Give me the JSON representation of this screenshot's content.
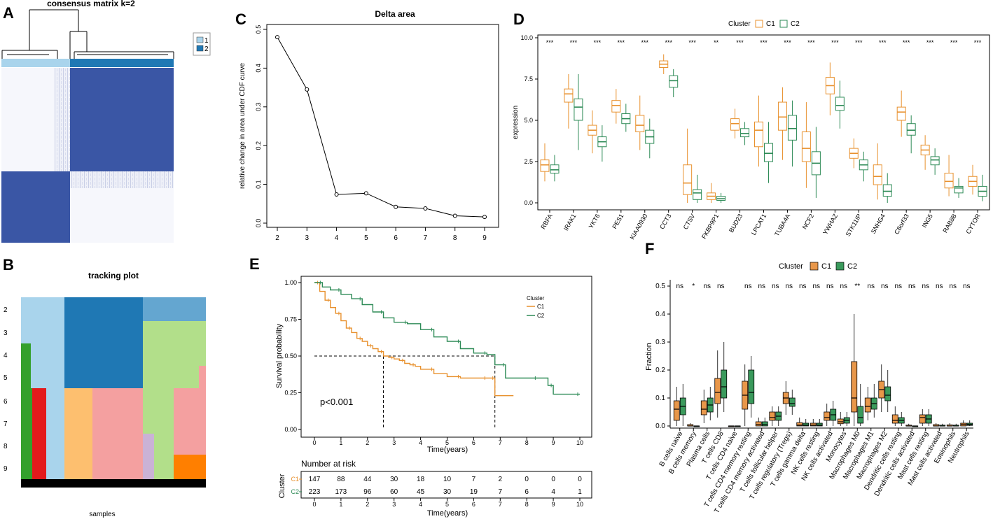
{
  "colors": {
    "c1": "#E8912E",
    "c2": "#2E8B57",
    "c1_fill": "#E8974A",
    "c2_fill": "#3A9A5C",
    "heat_dark": "#3A56A5",
    "heat_light": "#F3F4FB",
    "bar1": "#A9D4EC",
    "bar2": "#1F78B4"
  },
  "panels": {
    "A": {
      "letter": "A",
      "title": "consensus matrix k=2",
      "legend": [
        "1",
        "2"
      ]
    },
    "B": {
      "letter": "B",
      "title": "tracking plot",
      "xlabel": "samples",
      "rows": [
        "2",
        "3",
        "4",
        "5",
        "6",
        "7",
        "8",
        "9"
      ]
    },
    "C": {
      "letter": "C",
      "chart_data": {
        "type": "line",
        "title": "Delta area",
        "xlabel": "",
        "ylabel": "relative change in area under CDF curve",
        "x": [
          2,
          3,
          4,
          5,
          6,
          7,
          8,
          9
        ],
        "y": [
          0.48,
          0.345,
          0.074,
          0.077,
          0.042,
          0.038,
          0.019,
          0.016
        ],
        "xlim": [
          2,
          9
        ],
        "ylim": [
          0,
          0.5
        ],
        "yticks": [
          "0.0",
          "0.1",
          "0.2",
          "0.3",
          "0.4",
          "0.5"
        ],
        "xticks": [
          "2",
          "3",
          "4",
          "5",
          "6",
          "7",
          "8",
          "9"
        ]
      }
    },
    "D": {
      "letter": "D",
      "chart_data": {
        "type": "box",
        "ylabel": "expression",
        "legend_title": "Cluster",
        "legend_labels": [
          "C1",
          "C2"
        ],
        "yticks": [
          "0.0",
          "2.5",
          "5.0",
          "7.5",
          "10.0"
        ],
        "ylim": [
          0,
          10
        ],
        "categories": [
          "RBFA",
          "IRAK1",
          "YKT6",
          "PES1",
          "KIAA0930",
          "CCT3",
          "CTSV",
          "FKBP9P1",
          "BUD23",
          "LPCAT1",
          "TUBA4A",
          "NCF2",
          "YWHAZ",
          "STK11IP",
          "SNHG4",
          "C8orf33",
          "ING5",
          "RAB8B",
          "CYTOR"
        ],
        "signif": [
          "***",
          "***",
          "***",
          "***",
          "***",
          "***",
          "***",
          "**",
          "***",
          "***",
          "***",
          "***",
          "***",
          "***",
          "***",
          "***",
          "***",
          "***",
          "***"
        ],
        "series": [
          {
            "name": "C1",
            "stats": [
              [
                1.3,
                1.9,
                2.3,
                2.6,
                3.6
              ],
              [
                4.5,
                6.1,
                6.6,
                6.9,
                7.8
              ],
              [
                3.0,
                4.1,
                4.4,
                4.7,
                5.6
              ],
              [
                4.8,
                5.5,
                5.9,
                6.2,
                6.9
              ],
              [
                3.2,
                4.3,
                4.7,
                5.3,
                6.5
              ],
              [
                7.8,
                8.2,
                8.4,
                8.6,
                9.0
              ],
              [
                0,
                0.5,
                1.2,
                2.3,
                4.5
              ],
              [
                0,
                0.2,
                0.4,
                0.6,
                1.2
              ],
              [
                3.9,
                4.4,
                4.8,
                5.1,
                5.7
              ],
              [
                2.2,
                3.4,
                4.4,
                4.9,
                6.5
              ],
              [
                2.6,
                4.4,
                5.2,
                6.1,
                7.0
              ],
              [
                0.9,
                2.5,
                3.3,
                4.3,
                6.1
              ],
              [
                5.3,
                6.6,
                7.1,
                7.6,
                8.5
              ],
              [
                2.1,
                2.7,
                3.0,
                3.3,
                3.9
              ],
              [
                0.2,
                1.1,
                1.6,
                2.3,
                3.6
              ],
              [
                4.0,
                5.0,
                5.5,
                5.8,
                6.8
              ],
              [
                2.0,
                2.9,
                3.2,
                3.5,
                4.1
              ],
              [
                0.4,
                0.9,
                1.3,
                1.8,
                2.9
              ],
              [
                0.5,
                1.0,
                1.3,
                1.6,
                2.3
              ]
            ]
          },
          {
            "name": "C2",
            "stats": [
              [
                1.3,
                1.8,
                2.0,
                2.3,
                2.9
              ],
              [
                3.2,
                5.0,
                5.8,
                6.3,
                7.8
              ],
              [
                2.5,
                3.4,
                3.7,
                4.0,
                4.7
              ],
              [
                4.3,
                4.8,
                5.1,
                5.4,
                6.0
              ],
              [
                2.7,
                3.6,
                4.0,
                4.4,
                5.1
              ],
              [
                6.4,
                7.0,
                7.4,
                7.7,
                8.1
              ],
              [
                0,
                0.2,
                0.6,
                0.8,
                1.7
              ],
              [
                0,
                0.15,
                0.25,
                0.4,
                0.6
              ],
              [
                3.5,
                4.0,
                4.2,
                4.5,
                4.9
              ],
              [
                1.2,
                2.5,
                3.0,
                3.6,
                4.9
              ],
              [
                2.2,
                3.8,
                4.5,
                5.3,
                6.2
              ],
              [
                0.3,
                1.7,
                2.4,
                3.1,
                4.6
              ],
              [
                4.5,
                5.6,
                5.9,
                6.4,
                7.4
              ],
              [
                1.3,
                2.0,
                2.3,
                2.6,
                3.1
              ],
              [
                0,
                0.4,
                0.7,
                1.1,
                1.8
              ],
              [
                3.0,
                4.1,
                4.4,
                4.8,
                5.3
              ],
              [
                1.7,
                2.3,
                2.6,
                2.8,
                3.3
              ],
              [
                0.3,
                0.6,
                0.9,
                1.0,
                1.5
              ],
              [
                0.1,
                0.4,
                0.7,
                1.0,
                1.7
              ]
            ]
          }
        ]
      }
    },
    "E": {
      "letter": "E",
      "chart_data": {
        "type": "line",
        "xlabel": "Time(years)",
        "ylabel": "Survival probability",
        "pvalue": "p<0.001",
        "legend_title": "Cluster",
        "xticks": [
          "0",
          "1",
          "2",
          "3",
          "4",
          "5",
          "6",
          "7",
          "8",
          "9",
          "10"
        ],
        "yticks": [
          "0.00",
          "0.25",
          "0.50",
          "0.75",
          "1.00"
        ],
        "xlim": [
          0,
          10
        ],
        "ylim": [
          0,
          1
        ],
        "median_line_y": 0.5,
        "median_times": [
          2.6,
          6.8
        ],
        "series": [
          {
            "name": "C1",
            "x": [
              0,
              0.2,
              0.4,
              0.6,
              0.8,
              1.0,
              1.2,
              1.4,
              1.6,
              1.8,
              2.0,
              2.2,
              2.4,
              2.6,
              2.8,
              3.0,
              3.2,
              3.4,
              3.6,
              3.8,
              4.0,
              4.5,
              5.0,
              5.5,
              6.0,
              6.5,
              6.7,
              6.8,
              7.5
            ],
            "y": [
              1.0,
              0.94,
              0.88,
              0.83,
              0.79,
              0.74,
              0.69,
              0.66,
              0.62,
              0.6,
              0.57,
              0.55,
              0.53,
              0.5,
              0.49,
              0.48,
              0.47,
              0.45,
              0.44,
              0.43,
              0.41,
              0.38,
              0.36,
              0.35,
              0.35,
              0.35,
              0.35,
              0.23,
              0.23
            ]
          },
          {
            "name": "C2",
            "x": [
              0,
              0.3,
              0.6,
              1.0,
              1.4,
              1.8,
              2.2,
              2.6,
              3.0,
              3.5,
              4.0,
              4.5,
              5.0,
              5.5,
              6.0,
              6.5,
              6.8,
              7.2,
              7.8,
              8.4,
              8.8,
              9.0,
              9.5,
              10
            ],
            "y": [
              1.0,
              0.97,
              0.95,
              0.92,
              0.89,
              0.85,
              0.8,
              0.76,
              0.73,
              0.72,
              0.68,
              0.63,
              0.6,
              0.55,
              0.52,
              0.51,
              0.44,
              0.35,
              0.35,
              0.35,
              0.3,
              0.24,
              0.24,
              0.24
            ]
          }
        ]
      },
      "risk_table": {
        "title": "Number at risk",
        "ylabel": "Cluster",
        "rows": [
          {
            "name": "C1",
            "values": [
              "147",
              "88",
              "44",
              "30",
              "18",
              "10",
              "7",
              "2",
              "0",
              "0",
              "0"
            ]
          },
          {
            "name": "C2",
            "values": [
              "223",
              "173",
              "96",
              "60",
              "45",
              "30",
              "19",
              "7",
              "6",
              "4",
              "1"
            ]
          }
        ],
        "xlabel": "Time(years)"
      }
    },
    "F": {
      "letter": "F",
      "chart_data": {
        "type": "box",
        "ylabel": "Fraction",
        "legend_title": "Cluster",
        "legend_labels": [
          "C1",
          "C2"
        ],
        "yticks": [
          "0.0",
          "0.1",
          "0.2",
          "0.3",
          "0.4",
          "0.5"
        ],
        "ylim": [
          0,
          0.5
        ],
        "categories": [
          "B cells naive",
          "B cells memory",
          "Plasma cells",
          "T cells CD8",
          "T cells CD4 naive",
          "T cells CD4 memory resting",
          "T cells CD4 memory activated",
          "T cells follicular helper",
          "T cells regulatory (Tregs)",
          "T cells gamma delta",
          "NK cells resting",
          "NK cells activated",
          "Monocytes",
          "Macrophages M0",
          "Macrophages M1",
          "Macrophages M2",
          "Dendritic cells resting",
          "Dendritic cells activated",
          "Mast cells resting",
          "Mast cells activated",
          "Eosinophils",
          "Neutrophils"
        ],
        "signif": [
          "ns",
          "*",
          "ns",
          "ns",
          "",
          "ns",
          "ns",
          "ns",
          "ns",
          "ns",
          "ns",
          "ns",
          "ns",
          "**",
          "ns",
          "ns",
          "ns",
          "ns",
          "ns",
          "ns",
          "ns",
          "ns"
        ],
        "series": [
          {
            "name": "C1",
            "stats": [
              [
                0,
                0.02,
                0.06,
                0.09,
                0.14
              ],
              [
                0,
                0,
                0,
                0.005,
                0.01
              ],
              [
                0.01,
                0.04,
                0.06,
                0.09,
                0.13
              ],
              [
                0.03,
                0.08,
                0.12,
                0.17,
                0.27
              ],
              [
                0,
                0,
                0,
                0,
                0
              ],
              [
                0,
                0.06,
                0.11,
                0.16,
                0.22
              ],
              [
                0,
                0,
                0.005,
                0.015,
                0.03
              ],
              [
                0,
                0.02,
                0.03,
                0.05,
                0.07
              ],
              [
                0.04,
                0.08,
                0.1,
                0.12,
                0.16
              ],
              [
                0,
                0,
                0.003,
                0.012,
                0.03
              ],
              [
                0,
                0,
                0.003,
                0.01,
                0.025
              ],
              [
                0,
                0.02,
                0.03,
                0.05,
                0.08
              ],
              [
                0,
                0.008,
                0.015,
                0.025,
                0.05
              ],
              [
                0,
                0.05,
                0.1,
                0.23,
                0.4
              ],
              [
                0.02,
                0.05,
                0.07,
                0.1,
                0.14
              ],
              [
                0.05,
                0.1,
                0.13,
                0.16,
                0.22
              ],
              [
                0,
                0.01,
                0.02,
                0.04,
                0.07
              ],
              [
                0,
                0,
                0,
                0.003,
                0.008
              ],
              [
                0,
                0.01,
                0.03,
                0.04,
                0.06
              ],
              [
                0,
                0,
                0,
                0.005,
                0.01
              ],
              [
                0,
                0,
                0,
                0.004,
                0.01
              ],
              [
                0,
                0,
                0.005,
                0.01,
                0.02
              ]
            ]
          },
          {
            "name": "C2",
            "stats": [
              [
                0,
                0.04,
                0.07,
                0.1,
                0.15
              ],
              [
                0,
                0,
                0,
                0,
                0
              ],
              [
                0.02,
                0.05,
                0.075,
                0.1,
                0.14
              ],
              [
                0.05,
                0.1,
                0.14,
                0.2,
                0.3
              ],
              [
                0,
                0,
                0,
                0,
                0
              ],
              [
                0.03,
                0.08,
                0.12,
                0.2,
                0.25
              ],
              [
                0,
                0,
                0.005,
                0.015,
                0.03
              ],
              [
                0,
                0.02,
                0.035,
                0.05,
                0.07
              ],
              [
                0.04,
                0.07,
                0.08,
                0.1,
                0.13
              ],
              [
                0,
                0,
                0.003,
                0.01,
                0.025
              ],
              [
                0,
                0,
                0.003,
                0.01,
                0.025
              ],
              [
                0,
                0.02,
                0.04,
                0.06,
                0.09
              ],
              [
                0,
                0.01,
                0.02,
                0.03,
                0.05
              ],
              [
                0,
                0.01,
                0.03,
                0.07,
                0.15
              ],
              [
                0.03,
                0.06,
                0.08,
                0.1,
                0.15
              ],
              [
                0.05,
                0.09,
                0.11,
                0.14,
                0.2
              ],
              [
                0,
                0.01,
                0.02,
                0.03,
                0.05
              ],
              [
                0,
                0,
                0,
                0,
                0
              ],
              [
                0,
                0.01,
                0.025,
                0.04,
                0.06
              ],
              [
                0,
                0,
                0,
                0.003,
                0.008
              ],
              [
                0,
                0,
                0,
                0.003,
                0.008
              ],
              [
                0,
                0.002,
                0.006,
                0.01,
                0.02
              ]
            ]
          }
        ]
      }
    }
  }
}
